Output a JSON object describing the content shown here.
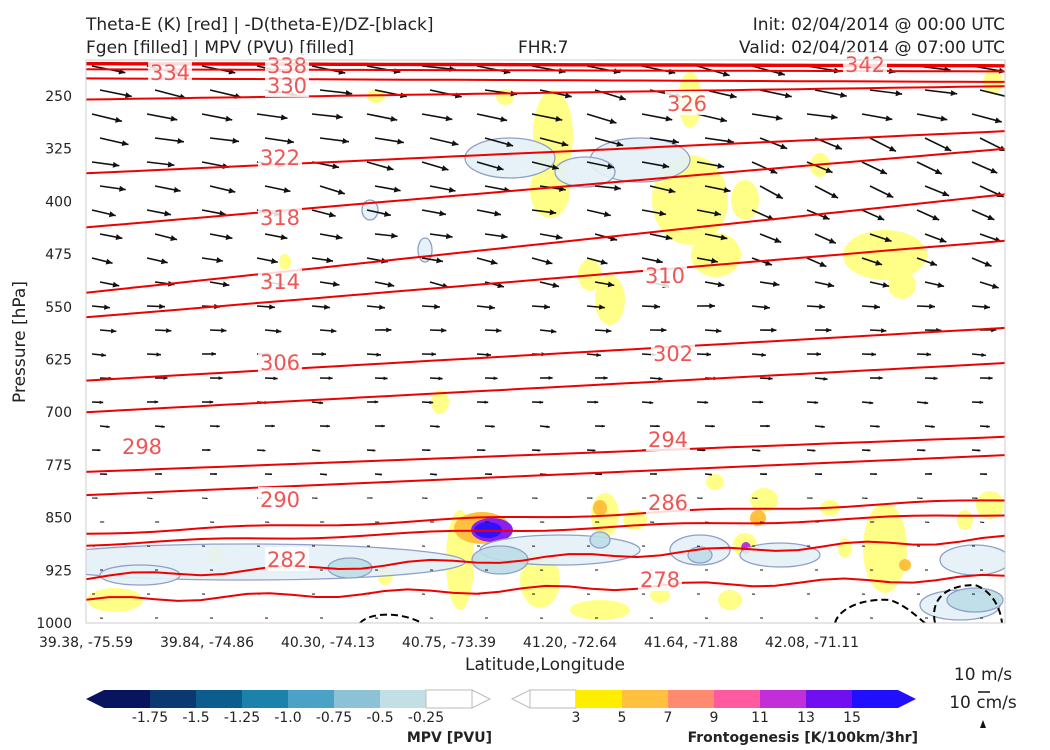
{
  "header": {
    "title_line1": "Theta-E (K) [red] | -D(theta-E)/DZ-[black]",
    "title_line2": "Fgen [filled] | MPV (PVU) [filled]",
    "fhr": "FHR:7",
    "init": "Init: 02/04/2014 @ 00:00 UTC",
    "valid": "Valid: 02/04/2014 @ 07:00 UTC"
  },
  "chart_data": {
    "type": "cross-section",
    "xlabel": "Latitude,Longitude",
    "ylabel": "Pressure [hPa]",
    "ylim": [
      1000,
      200
    ],
    "x_ticks": [
      "39.38, -75.59",
      "39.84, -74.86",
      "40.30, -74.13",
      "40.75, -73.39",
      "41.20, -72.64",
      "41.64, -71.88",
      "42.08, -71.11"
    ],
    "y_ticks": [
      250,
      325,
      400,
      475,
      550,
      625,
      700,
      775,
      850,
      925,
      1000
    ],
    "theta_e_contours": [
      {
        "label": "334",
        "p": [
          212,
          215
        ]
      },
      {
        "label": "338",
        "p": [
          205,
          208
        ]
      },
      {
        "label": "342",
        "p": [
          203,
          206
        ]
      },
      {
        "label": "330",
        "p": [
          225,
          230
        ]
      },
      {
        "label": "326",
        "p": [
          255,
          236
        ]
      },
      {
        "label": "322",
        "p": [
          360,
          300
        ]
      },
      {
        "label": "318",
        "p": [
          437,
          325
        ]
      },
      {
        "label": "314",
        "p": [
          530,
          390
        ]
      },
      {
        "label": "310",
        "p": [
          565,
          456
        ]
      },
      {
        "label": "306",
        "p": [
          655,
          580
        ]
      },
      {
        "label": "302",
        "p": [
          700,
          630
        ]
      },
      {
        "label": "298",
        "p": [
          785,
          735
        ]
      },
      {
        "label": "294",
        "p": [
          818,
          761
        ]
      },
      {
        "label": "290",
        "p": [
          872,
          825
        ]
      },
      {
        "label": "286",
        "p": [
          888,
          845
        ]
      },
      {
        "label": "282",
        "p": [
          935,
          880
        ]
      },
      {
        "label": "278",
        "p": [
          968,
          935
        ]
      }
    ],
    "mpv_colorbar": {
      "title": "MPV [PVU]",
      "ticks": [
        "-1.75",
        "-1.5",
        "-1.25",
        "-1.0",
        "-0.75",
        "-0.5",
        "-0.25"
      ],
      "colors": [
        "#08155e",
        "#0c3872",
        "#0d5c8e",
        "#1a82ab",
        "#4aa3c6",
        "#8cc1d6",
        "#c3dfe6",
        "#ffffff"
      ]
    },
    "fgen_colorbar": {
      "title": "Frontogenesis [K/100km/3hr]",
      "ticks": [
        "3",
        "5",
        "7",
        "9",
        "11",
        "13",
        "15"
      ],
      "colors": [
        "#ffffff",
        "#ffee00",
        "#ffc040",
        "#ff8a70",
        "#ff5aa0",
        "#c02fd8",
        "#7010f0",
        "#2010ff"
      ]
    },
    "vector_keys": [
      "10 m/s",
      "10 cm/s"
    ],
    "colors": {
      "theta_e": "#ee0000",
      "theta_e_label": "#ee5555",
      "fgen_fill": "#ffff88",
      "mpv_line": "#8fa0c8",
      "mpv_fill": "#dff0f5",
      "vector": "#111111"
    }
  }
}
